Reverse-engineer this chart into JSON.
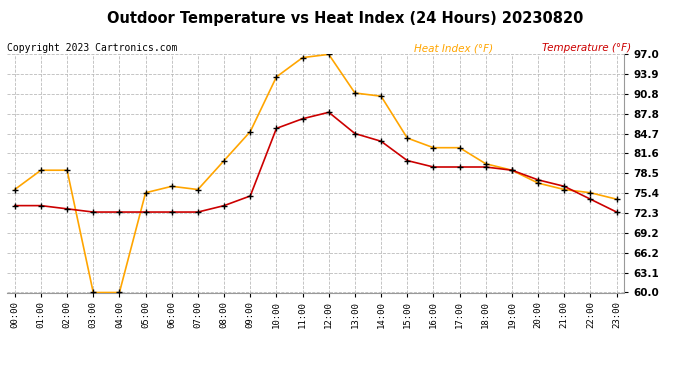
{
  "title": "Outdoor Temperature vs Heat Index (24 Hours) 20230820",
  "copyright": "Copyright 2023 Cartronics.com",
  "legend_heat": "Heat Index (°F)",
  "legend_temp": "Temperature (°F)",
  "hours": [
    0,
    1,
    2,
    3,
    4,
    5,
    6,
    7,
    8,
    9,
    10,
    11,
    12,
    13,
    14,
    15,
    16,
    17,
    18,
    19,
    20,
    21,
    22,
    23
  ],
  "heat_index": [
    76.0,
    79.0,
    79.0,
    60.0,
    60.0,
    75.5,
    76.5,
    76.0,
    80.5,
    85.0,
    93.5,
    96.5,
    97.0,
    91.0,
    90.5,
    84.0,
    82.5,
    82.5,
    80.0,
    79.0,
    77.0,
    76.0,
    75.5,
    74.5
  ],
  "temperature": [
    73.5,
    73.5,
    73.0,
    72.5,
    72.5,
    72.5,
    72.5,
    72.5,
    73.5,
    75.0,
    85.5,
    87.0,
    88.0,
    84.7,
    83.5,
    80.5,
    79.5,
    79.5,
    79.5,
    79.0,
    77.5,
    76.5,
    74.5,
    72.5
  ],
  "ylim": [
    60.0,
    97.0
  ],
  "yticks": [
    60.0,
    63.1,
    66.2,
    69.2,
    72.3,
    75.4,
    78.5,
    81.6,
    84.7,
    87.8,
    90.8,
    93.9,
    97.0
  ],
  "heat_color": "#FFA500",
  "temp_color": "#CC0000",
  "marker_color": "black",
  "bg_color": "#FFFFFF",
  "grid_color": "#BBBBBB"
}
